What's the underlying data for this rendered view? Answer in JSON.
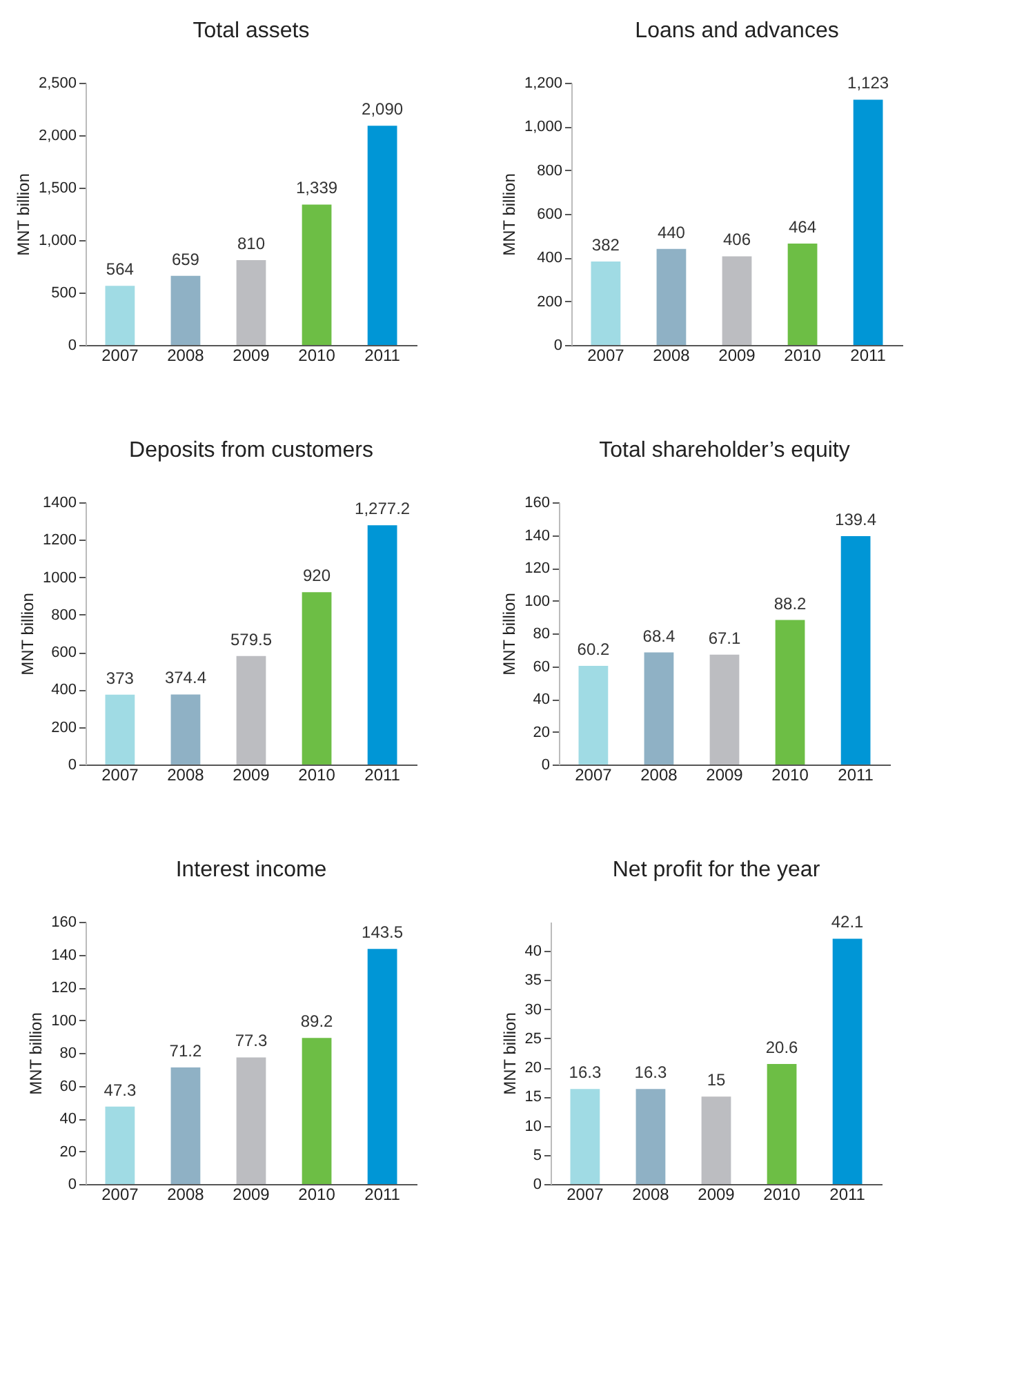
{
  "chart_data": [
    {
      "type": "bar",
      "title": "Total assets",
      "ylabel": "MNT billion",
      "categories": [
        "2007",
        "2008",
        "2009",
        "2010",
        "2011"
      ],
      "values": [
        564,
        659,
        810,
        1339,
        2090
      ],
      "value_labels": [
        "564",
        "659",
        "810",
        "1,339",
        "2,090"
      ],
      "colors": [
        "#a0dbe4",
        "#8fb1c5",
        "#bcbdc1",
        "#6dbe45",
        "#0096d6"
      ],
      "ylim": [
        0,
        2500
      ],
      "yticks": [
        0,
        500,
        {
          "value": 1000,
          "label": "1,000"
        },
        {
          "value": 1500,
          "label": "1,500"
        },
        {
          "value": 2000,
          "label": "2,000"
        },
        {
          "value": 2500,
          "label": "2,500"
        }
      ],
      "grid": false,
      "legend": false
    },
    {
      "type": "bar",
      "title": "Loans and advances",
      "ylabel": "MNT billion",
      "categories": [
        "2007",
        "2008",
        "2009",
        "2010",
        "2011"
      ],
      "values": [
        382,
        440,
        406,
        464,
        1123
      ],
      "value_labels": [
        "382",
        "440",
        "406",
        "464",
        "1,123"
      ],
      "colors": [
        "#a0dbe4",
        "#8fb1c5",
        "#bcbdc1",
        "#6dbe45",
        "#0096d6"
      ],
      "ylim": [
        0,
        1200
      ],
      "yticks": [
        0,
        200,
        400,
        600,
        800,
        {
          "value": 1000,
          "label": "1,000"
        },
        {
          "value": 1200,
          "label": "1,200"
        }
      ],
      "grid": false,
      "legend": false
    },
    {
      "type": "bar",
      "title": "Deposits from customers",
      "ylabel": "MNT billion",
      "categories": [
        "2007",
        "2008",
        "2009",
        "2010",
        "2011"
      ],
      "values": [
        373,
        374.4,
        579.5,
        920,
        1277.2
      ],
      "value_labels": [
        "373",
        "374.4",
        "579.5",
        "920",
        "1,277.2"
      ],
      "colors": [
        "#a0dbe4",
        "#8fb1c5",
        "#bcbdc1",
        "#6dbe45",
        "#0096d6"
      ],
      "ylim": [
        0,
        1400
      ],
      "yticks": [
        0,
        200,
        400,
        600,
        800,
        1000,
        1200,
        1400
      ],
      "grid": false,
      "legend": false
    },
    {
      "type": "bar",
      "title": "Total shareholder’s equity",
      "ylabel": "MNT billion",
      "categories": [
        "2007",
        "2008",
        "2009",
        "2010",
        "2011"
      ],
      "values": [
        60.2,
        68.4,
        67.1,
        88.2,
        139.4
      ],
      "value_labels": [
        "60.2",
        "68.4",
        "67.1",
        "88.2",
        "139.4"
      ],
      "colors": [
        "#a0dbe4",
        "#8fb1c5",
        "#bcbdc1",
        "#6dbe45",
        "#0096d6"
      ],
      "ylim": [
        0,
        160
      ],
      "yticks": [
        0,
        20,
        40,
        60,
        80,
        100,
        120,
        140,
        160
      ],
      "grid": false,
      "legend": false
    },
    {
      "type": "bar",
      "title": "Interest income",
      "ylabel": "MNT billion",
      "categories": [
        "2007",
        "2008",
        "2009",
        "2010",
        "2011"
      ],
      "values": [
        47.3,
        71.2,
        77.3,
        89.2,
        143.5
      ],
      "value_labels": [
        "47.3",
        "71.2",
        "77.3",
        "89.2",
        "143.5"
      ],
      "colors": [
        "#a0dbe4",
        "#8fb1c5",
        "#bcbdc1",
        "#6dbe45",
        "#0096d6"
      ],
      "ylim": [
        0,
        160
      ],
      "yticks": [
        0,
        20,
        40,
        60,
        80,
        100,
        120,
        140,
        160
      ],
      "grid": false,
      "legend": false
    },
    {
      "type": "bar",
      "title": "Net profit for the year",
      "ylabel": "MNT billion",
      "categories": [
        "2007",
        "2008",
        "2009",
        "2010",
        "2011"
      ],
      "values": [
        16.3,
        16.3,
        15,
        20.6,
        42.1
      ],
      "value_labels": [
        "16.3",
        "16.3",
        "15",
        "20.6",
        "42.1"
      ],
      "colors": [
        "#a0dbe4",
        "#8fb1c5",
        "#bcbdc1",
        "#6dbe45",
        "#0096d6"
      ],
      "ylim": [
        0,
        45
      ],
      "yticks": [
        0,
        5,
        10,
        15,
        20,
        25,
        30,
        35,
        40
      ],
      "grid": false,
      "legend": false
    }
  ]
}
